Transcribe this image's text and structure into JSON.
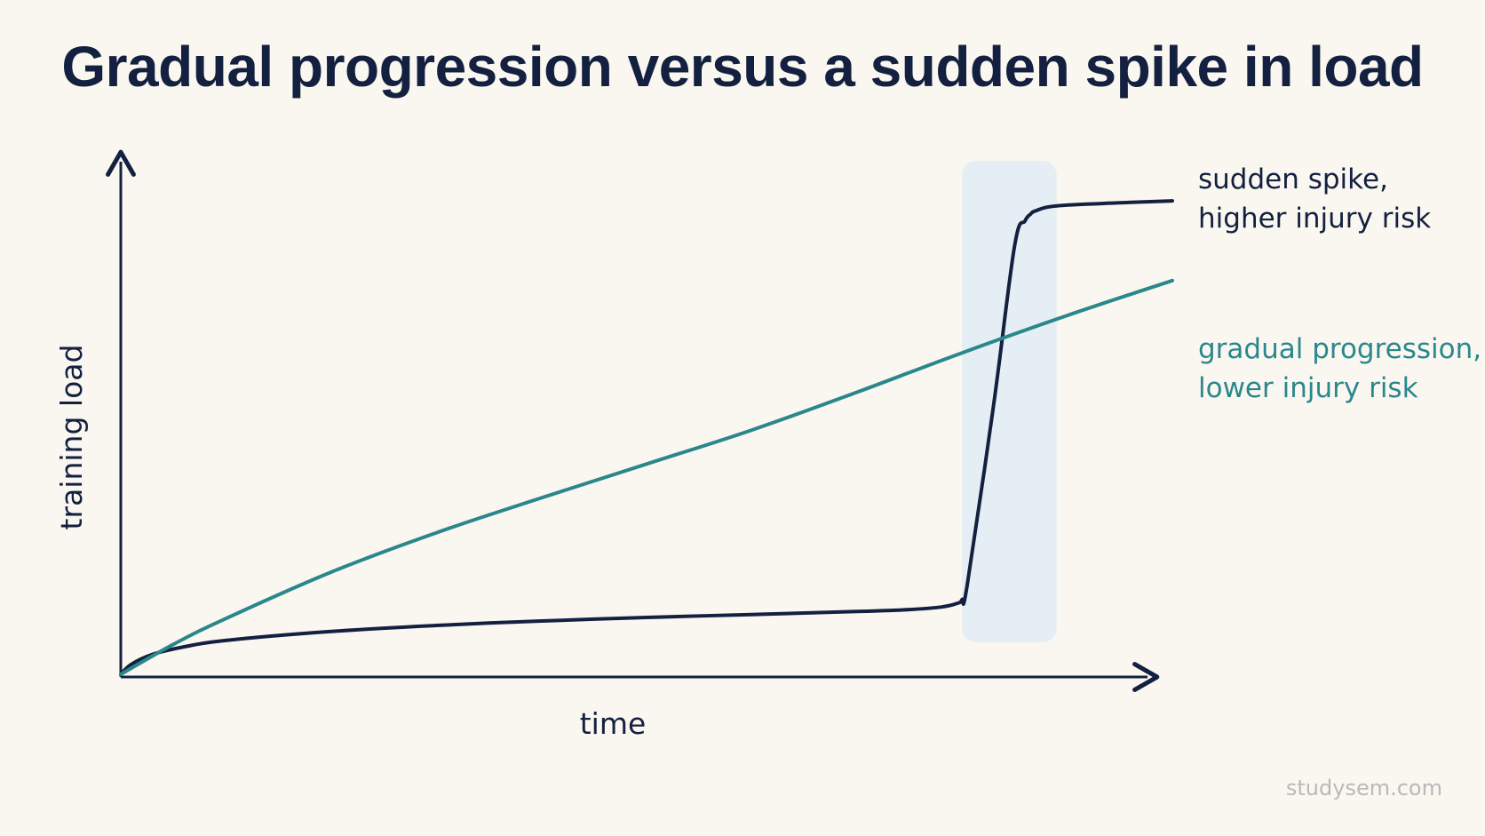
{
  "chart_data": {
    "type": "line",
    "title": "Gradual progression versus a sudden spike in load",
    "xlabel": "time",
    "ylabel": "training load",
    "xlim": [
      0,
      100
    ],
    "ylim": [
      0,
      100
    ],
    "grid": false,
    "legend": "direct labels at line ends (right)",
    "highlight_band": {
      "x_start": 80,
      "x_end": 89,
      "color": "#e4eef4"
    },
    "series": [
      {
        "name": "sudden spike, higher injury risk",
        "label_lines": [
          "sudden spike,",
          "higher injury risk"
        ],
        "color": "#13203f",
        "x": [
          0,
          1,
          3,
          6,
          10,
          20,
          30,
          40,
          50,
          60,
          70,
          75,
          78,
          79.5,
          80,
          80.5,
          83,
          85,
          86,
          86.5,
          87,
          89,
          95,
          100
        ],
        "y": [
          0,
          2,
          4,
          5.5,
          6.8,
          8.6,
          9.8,
          10.7,
          11.4,
          12,
          12.6,
          13,
          13.5,
          14.2,
          15,
          18,
          54,
          86,
          91,
          92.3,
          93,
          94,
          94.6,
          95
        ]
      },
      {
        "name": "gradual progression, lower injury risk",
        "label_lines": [
          "gradual progression,",
          "lower injury risk"
        ],
        "color": "#2a878b",
        "x": [
          0,
          5,
          10,
          20,
          30,
          40,
          50,
          60,
          70,
          80,
          90,
          100
        ],
        "y": [
          0,
          6,
          11.2,
          20.5,
          28.4,
          35.4,
          42.2,
          49,
          56.6,
          64.5,
          72,
          79
        ]
      }
    ]
  },
  "watermark": "studysem.com"
}
